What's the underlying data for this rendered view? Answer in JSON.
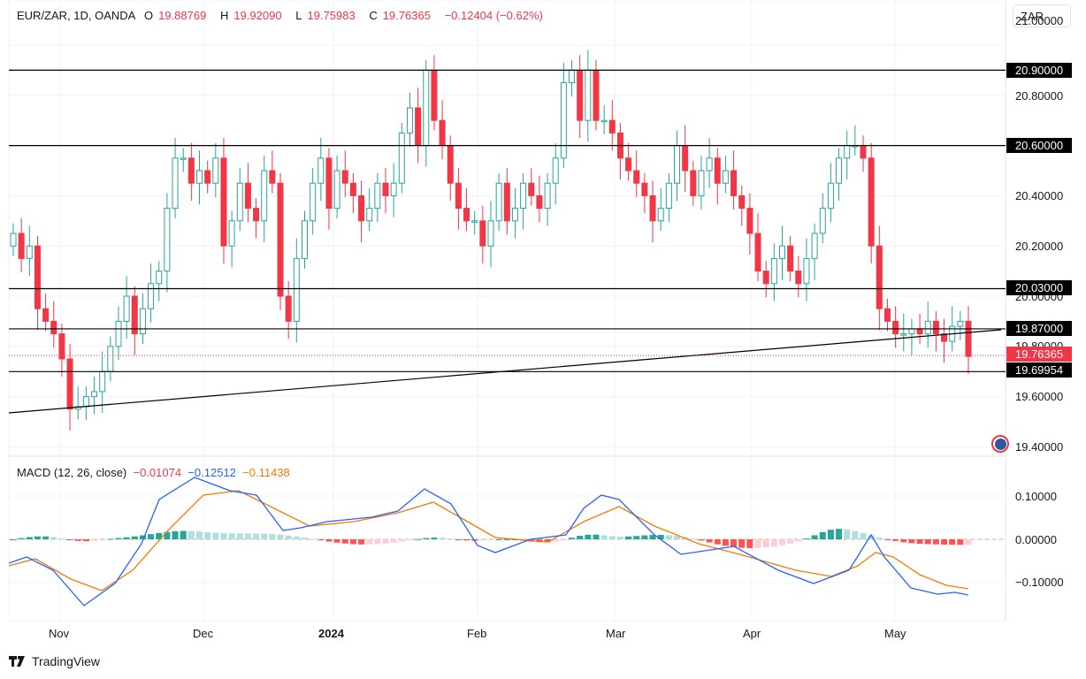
{
  "header": {
    "symbol": "EUR/ZAR, 1D, OANDA",
    "open_label": "O",
    "open": "19.88769",
    "high_label": "H",
    "high": "19.92090",
    "low_label": "L",
    "low": "19.75983",
    "close_label": "C",
    "close": "19.76365",
    "change": "−0.12404 (−0.62%)"
  },
  "currency_button": "ZAR",
  "price_axis": {
    "ticks": [
      "21.00000",
      "20.80000",
      "20.40000",
      "20.20000",
      "20.00000",
      "19.80000",
      "19.60000",
      "19.40000"
    ],
    "tags": [
      "20.90000",
      "20.60000",
      "20.03000",
      "19.87000",
      "19.69954"
    ],
    "last_price": "19.76365"
  },
  "macd": {
    "title": "MACD (12, 26, close)",
    "hist": "−0.01074",
    "macd": "−0.12512",
    "signal": "−0.11438",
    "ticks": [
      "0.10000",
      "0.00000",
      "−0.10000"
    ]
  },
  "time_axis": [
    "Nov",
    "Dec",
    "2024",
    "Feb",
    "Mar",
    "Apr",
    "May"
  ],
  "brand": "TradingView",
  "colors": {
    "up": "#26a69a",
    "down": "#f23645",
    "macd": "#2962ff",
    "signal": "#f57c00",
    "hist_up": "#26a69a",
    "hist_up_light": "#b2dfdb",
    "hist_down": "#ff5252",
    "hist_down_light": "#ffcdd2"
  },
  "chart_data": {
    "type": "candlestick",
    "title": "EUR/ZAR, 1D, OANDA",
    "ylim": [
      19.4,
      21.0
    ],
    "horizontal_levels": [
      20.9,
      20.6,
      20.03,
      19.87,
      19.69954
    ],
    "trendline": {
      "from": [
        "2023-10-12",
        19.53
      ],
      "to": [
        "2024-05-20",
        19.865
      ]
    },
    "last_price": 19.76365,
    "x_ticks": [
      "Nov",
      "Dec",
      "2024",
      "Feb",
      "Mar",
      "Apr",
      "May"
    ],
    "approx_closes": [
      20.25,
      20.15,
      20.2,
      19.95,
      19.9,
      19.85,
      19.75,
      19.55,
      19.56,
      19.6,
      19.62,
      19.7,
      19.8,
      19.9,
      20.0,
      19.85,
      19.95,
      20.05,
      20.1,
      20.35,
      20.55,
      20.55,
      20.45,
      20.5,
      20.45,
      20.55,
      20.2,
      20.3,
      20.45,
      20.35,
      20.3,
      20.5,
      20.45,
      20.0,
      19.9,
      20.15,
      20.3,
      20.45,
      20.55,
      20.35,
      20.5,
      20.45,
      20.4,
      20.3,
      20.35,
      20.45,
      20.4,
      20.45,
      20.65,
      20.75,
      20.6,
      20.9,
      20.7,
      20.6,
      20.45,
      20.35,
      20.3,
      20.3,
      20.2,
      20.3,
      20.45,
      20.3,
      20.35,
      20.45,
      20.4,
      20.35,
      20.45,
      20.55,
      20.85,
      20.9,
      20.7,
      20.9,
      20.7,
      20.7,
      20.65,
      20.55,
      20.5,
      20.45,
      20.4,
      20.3,
      20.35,
      20.45,
      20.6,
      20.5,
      20.4,
      20.5,
      20.55,
      20.45,
      20.5,
      20.4,
      20.35,
      20.25,
      20.1,
      20.05,
      20.15,
      20.2,
      20.1,
      20.05,
      20.15,
      20.25,
      20.35,
      20.45,
      20.55,
      20.6,
      20.6,
      20.55,
      20.2,
      19.95,
      19.9,
      19.85,
      19.85,
      19.87,
      19.85,
      19.9,
      19.85,
      19.82,
      19.88,
      19.9,
      19.76
    ],
    "macd_series": {
      "macd_range": [
        -0.15,
        0.12
      ],
      "signal_range": [
        -0.12,
        0.11
      ],
      "last": {
        "hist": -0.01074,
        "macd": -0.12512,
        "signal": -0.11438
      }
    }
  }
}
